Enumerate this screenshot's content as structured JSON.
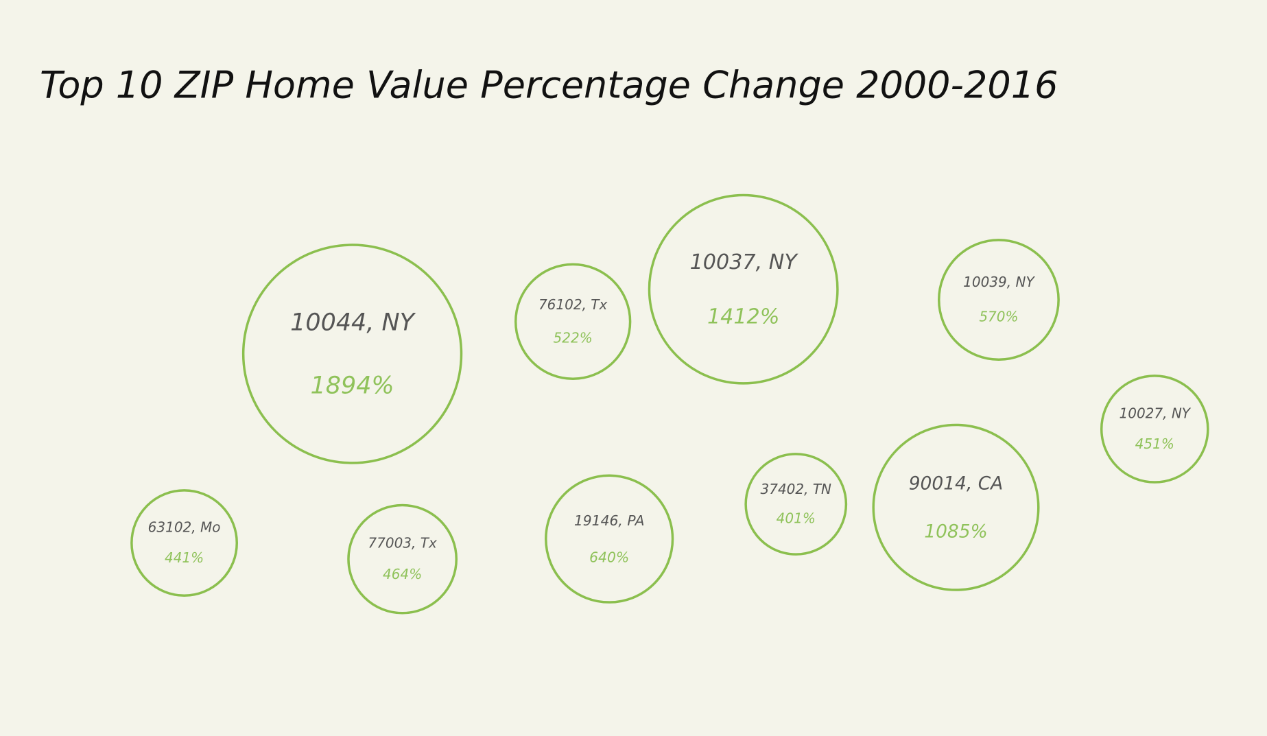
{
  "chart_data": {
    "type": "bubble",
    "title": "Top 10 ZIP Home Value Percentage Change 2000-2016",
    "categories": [
      "10044, NY",
      "76102, Tx",
      "10037, NY",
      "10039, NY",
      "10027, NY",
      "63102, Mo",
      "77003, Tx",
      "19146, PA",
      "37402, TN",
      "90014, CA"
    ],
    "values": [
      1894,
      522,
      1412,
      570,
      451,
      441,
      464,
      640,
      401,
      1085
    ],
    "value_labels": [
      "1894%",
      "522%",
      "1412%",
      "570%",
      "451%",
      "441%",
      "464%",
      "640%",
      "401%",
      "1085%"
    ],
    "color": "#8bbf4e"
  }
}
